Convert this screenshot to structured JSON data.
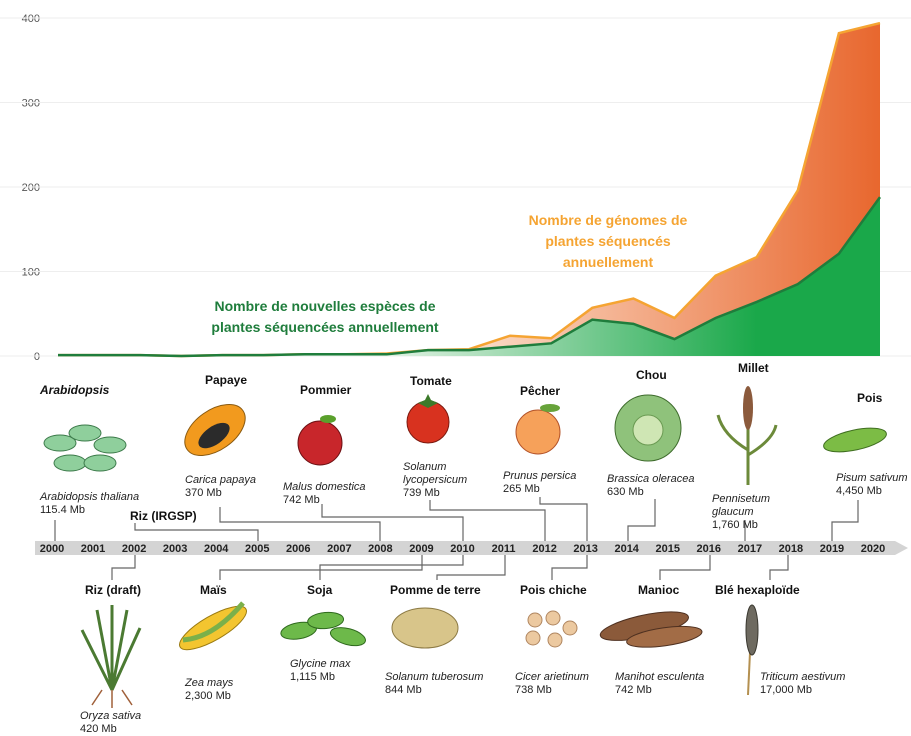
{
  "chart_data": {
    "type": "area",
    "x": [
      2000,
      2001,
      2002,
      2003,
      2004,
      2005,
      2006,
      2007,
      2008,
      2009,
      2010,
      2011,
      2012,
      2013,
      2014,
      2015,
      2016,
      2017,
      2018,
      2019,
      2020
    ],
    "ylim": [
      0,
      400
    ],
    "yticks": [
      0,
      100,
      200,
      300,
      400
    ],
    "grid": true,
    "series": [
      {
        "name": "Nombre de génomes de plantes séquencés annuellement",
        "color": "#f5a432",
        "values": [
          1,
          1,
          1,
          0,
          1,
          1,
          2,
          2,
          3,
          7,
          8,
          24,
          21,
          57,
          68,
          45,
          95,
          117,
          196,
          382,
          394
        ]
      },
      {
        "name": "Nombre de nouvelles espèces de plantes séquencées annuellement",
        "color": "#1f7d3c",
        "values": [
          1,
          1,
          1,
          0,
          1,
          1,
          2,
          2,
          2,
          7,
          7,
          11,
          15,
          43,
          38,
          20,
          45,
          64,
          85,
          121,
          188
        ]
      }
    ],
    "plants_top": [
      {
        "name": "Arabidopsis",
        "species": "Arabidopsis thaliana",
        "size": "115.4 Mb"
      },
      {
        "name": "Riz (IRGSP)"
      },
      {
        "name": "Papaye",
        "species": "Carica papaya",
        "size": "370 Mb"
      },
      {
        "name": "Pommier",
        "species": "Malus domestica",
        "size": "742 Mb"
      },
      {
        "name": "Tomate",
        "species": "Solanum lycopersicum",
        "size": "739 Mb"
      },
      {
        "name": "Pêcher",
        "species": "Prunus persica",
        "size": "265 Mb"
      },
      {
        "name": "Chou",
        "species": "Brassica oleracea",
        "size": "630 Mb"
      },
      {
        "name": "Millet",
        "species": "Pennisetum glaucum",
        "size": "1,760 Mb"
      },
      {
        "name": "Pois",
        "species": "Pisum sativum",
        "size": "4,450 Mb"
      }
    ],
    "plants_bottom": [
      {
        "name": "Riz (draft)",
        "species": "Oryza sativa",
        "size": "420 Mb"
      },
      {
        "name": "Maïs",
        "species": "Zea mays",
        "size": "2,300 Mb"
      },
      {
        "name": "Soja",
        "species": "Glycine max",
        "size": "1,115 Mb"
      },
      {
        "name": "Pomme de terre",
        "species": "Solanum tuberosum",
        "size": "844 Mb"
      },
      {
        "name": "Pois chiche",
        "species": "Cicer arietinum",
        "size": "738 Mb"
      },
      {
        "name": "Manioc",
        "species": "Manihot esculenta",
        "size": "742 Mb"
      },
      {
        "name": "Blé hexaploïde",
        "species": "Triticum aestivum",
        "size": "17,000 Mb"
      }
    ]
  }
}
